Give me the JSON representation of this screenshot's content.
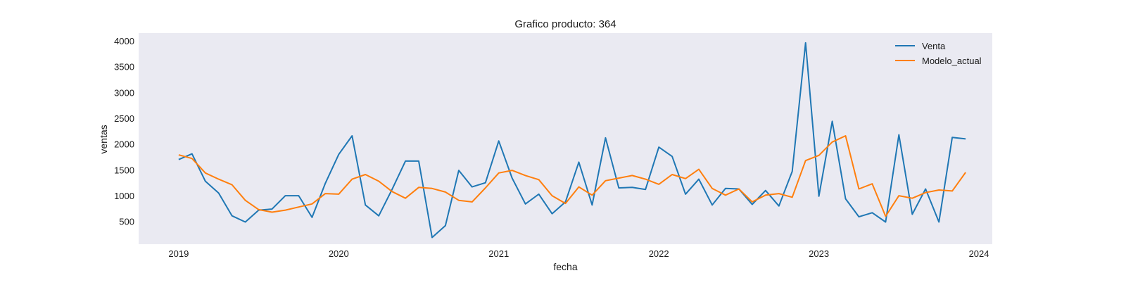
{
  "chart_data": {
    "type": "line",
    "title": "Grafico producto: 364",
    "xlabel": "fecha",
    "ylabel": "ventas",
    "x_ticks": [
      "2019",
      "2020",
      "2021",
      "2022",
      "2023",
      "2024"
    ],
    "y_ticks": [
      500,
      1000,
      1500,
      2000,
      2500,
      3000,
      3500,
      4000
    ],
    "xlim": [
      "2018-10",
      "2024-02"
    ],
    "ylim": [
      60,
      4150
    ],
    "grid": false,
    "legend_position": "top-right",
    "x": [
      "2019-01",
      "2019-02",
      "2019-03",
      "2019-04",
      "2019-05",
      "2019-06",
      "2019-07",
      "2019-08",
      "2019-09",
      "2019-10",
      "2019-11",
      "2019-12",
      "2020-01",
      "2020-02",
      "2020-03",
      "2020-04",
      "2020-05",
      "2020-06",
      "2020-07",
      "2020-08",
      "2020-09",
      "2020-10",
      "2020-11",
      "2020-12",
      "2021-01",
      "2021-02",
      "2021-03",
      "2021-04",
      "2021-05",
      "2021-06",
      "2021-07",
      "2021-08",
      "2021-09",
      "2021-10",
      "2021-11",
      "2021-12",
      "2022-01",
      "2022-02",
      "2022-03",
      "2022-04",
      "2022-05",
      "2022-06",
      "2022-07",
      "2022-08",
      "2022-09",
      "2022-10",
      "2022-11",
      "2022-12",
      "2023-01",
      "2023-02",
      "2023-03",
      "2023-04",
      "2023-05",
      "2023-06",
      "2023-07",
      "2023-08",
      "2023-09",
      "2023-10",
      "2023-11",
      "2023-12"
    ],
    "series": [
      {
        "name": "Venta",
        "color": "#1f77b4",
        "values": [
          1700,
          1810,
          1280,
          1050,
          610,
          490,
          720,
          740,
          1000,
          1000,
          580,
          1240,
          1800,
          2160,
          820,
          610,
          1120,
          1670,
          1670,
          190,
          420,
          1490,
          1170,
          1250,
          2060,
          1340,
          840,
          1030,
          650,
          880,
          1650,
          820,
          2120,
          1150,
          1160,
          1120,
          1940,
          1760,
          1030,
          1320,
          820,
          1140,
          1130,
          830,
          1100,
          800,
          1470,
          3960,
          990,
          2440,
          940,
          590,
          670,
          490,
          2180,
          640,
          1130,
          490,
          2130,
          2100
        ]
      },
      {
        "name": "Modelo_actual",
        "color": "#ff7f0e",
        "values": [
          1790,
          1720,
          1440,
          1320,
          1210,
          910,
          730,
          680,
          720,
          780,
          840,
          1040,
          1030,
          1320,
          1410,
          1280,
          1080,
          950,
          1160,
          1140,
          1070,
          910,
          880,
          1150,
          1440,
          1490,
          1390,
          1310,
          1000,
          850,
          1170,
          1010,
          1290,
          1340,
          1390,
          1320,
          1220,
          1410,
          1330,
          1510,
          1140,
          1010,
          1130,
          880,
          1010,
          1040,
          970,
          1680,
          1780,
          2040,
          2160,
          1130,
          1230,
          600,
          1000,
          950,
          1060,
          1110,
          1090,
          1450
        ]
      }
    ]
  }
}
